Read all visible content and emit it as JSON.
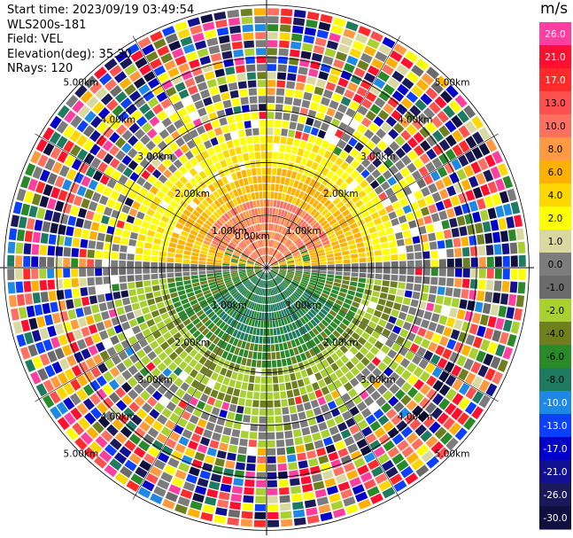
{
  "header": {
    "start_time": "Start time: 2023/09/19 03:49:54",
    "instrument": "WLS200s-181",
    "field": "Field: VEL",
    "elevation": "Elevation(deg): 35.30",
    "nrays": "NRays: 120"
  },
  "ppi": {
    "rings": [
      {
        "label": "1.00km"
      },
      {
        "label": "2.00km"
      },
      {
        "label": "3.00km"
      },
      {
        "label": "4.00km"
      },
      {
        "label": "5.00km"
      }
    ],
    "center_label": "0.00km"
  },
  "colorbar": {
    "unit": "m/s",
    "levels": [
      {
        "label": "26.0",
        "color": "#ff3fa0"
      },
      {
        "label": "21.0",
        "color": "#ff1030"
      },
      {
        "label": "17.0",
        "color": "#ff2a2a"
      },
      {
        "label": "13.0",
        "color": "#ff5050"
      },
      {
        "label": "10.0",
        "color": "#ff7060"
      },
      {
        "label": "8.0",
        "color": "#ff9a40"
      },
      {
        "label": "6.0",
        "color": "#ffb000"
      },
      {
        "label": "4.0",
        "color": "#ffd700"
      },
      {
        "label": "2.0",
        "color": "#ffff00"
      },
      {
        "label": "1.0",
        "color": "#d8d8a0"
      },
      {
        "label": "0.0",
        "color": "#7c7c7c"
      },
      {
        "label": "-1.0",
        "color": "#6b6b6b"
      },
      {
        "label": "-2.0",
        "color": "#a8d030"
      },
      {
        "label": "-4.0",
        "color": "#6e7f20"
      },
      {
        "label": "-6.0",
        "color": "#2a8a2a"
      },
      {
        "label": "-8.0",
        "color": "#1e7a60"
      },
      {
        "label": "-10.0",
        "color": "#1e88e5"
      },
      {
        "label": "-13.0",
        "color": "#0b40ff"
      },
      {
        "label": "-17.0",
        "color": "#0000c8"
      },
      {
        "label": "-21.0",
        "color": "#101090"
      },
      {
        "label": "-26.0",
        "color": "#1a1a5a"
      },
      {
        "label": "-30.0",
        "color": "#101040"
      }
    ]
  }
}
